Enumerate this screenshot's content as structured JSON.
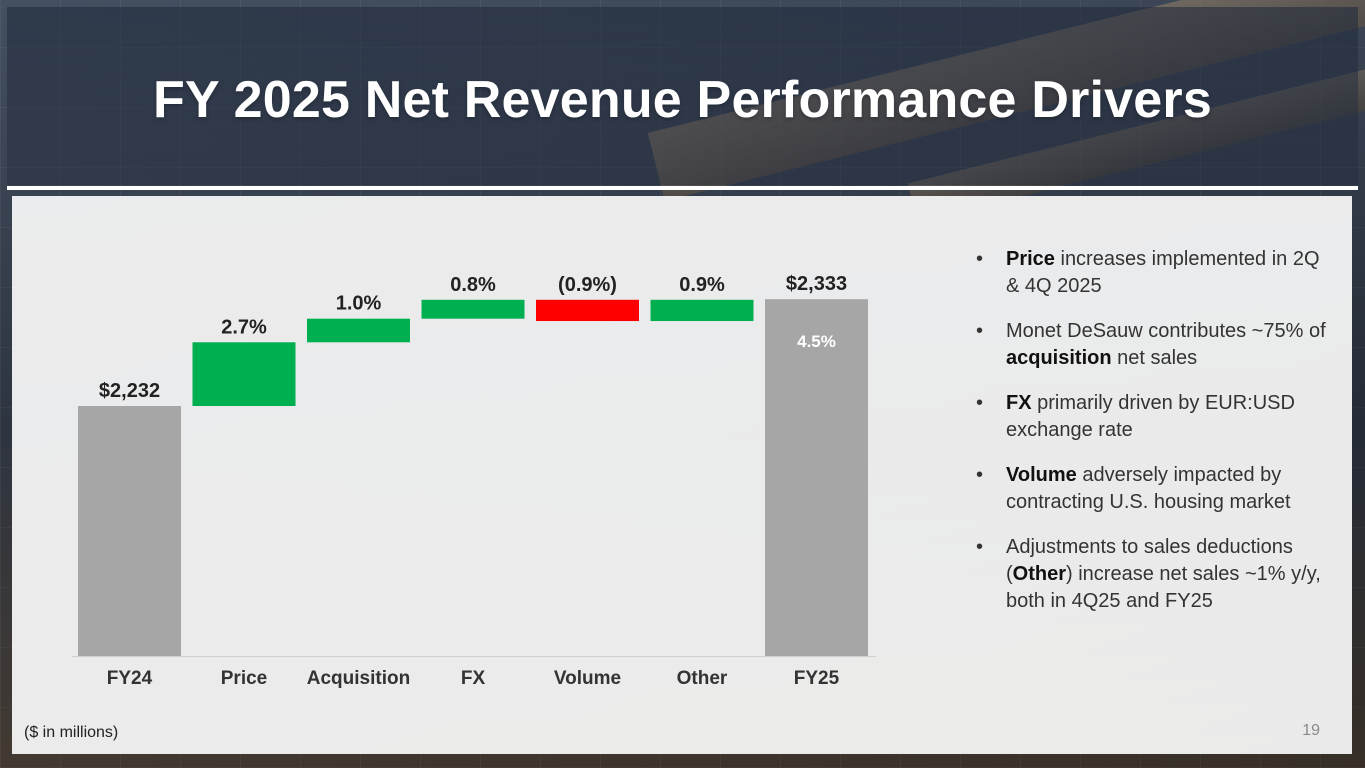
{
  "slide": {
    "title": "FY 2025 Net Revenue Performance Drivers",
    "footnote": "($ in millions)",
    "page_number": "19"
  },
  "colors": {
    "total_bar": "#a6a6a6",
    "increase": "#00b050",
    "decrease": "#ff0000"
  },
  "chart_data": {
    "type": "bar",
    "subtype": "waterfall",
    "categories": [
      "FY24",
      "Price",
      "Acquisition",
      "FX",
      "Volume",
      "Other",
      "FY25"
    ],
    "bar_kinds": [
      "total",
      "increase",
      "increase",
      "increase",
      "decrease",
      "increase",
      "total"
    ],
    "values_pct": [
      null,
      2.7,
      1.0,
      0.8,
      -0.9,
      0.9,
      null
    ],
    "start_value": 2232,
    "end_value": 2333,
    "labels": [
      "$2,232",
      "2.7%",
      "1.0%",
      "0.8%",
      "(0.9%)",
      "0.9%",
      "$2,333"
    ],
    "total_change_label": "4.5%",
    "unit": "$ in millions"
  },
  "bullets": [
    {
      "parts": [
        {
          "text": "Price",
          "bold": true
        },
        {
          "text": " increases implemented in 2Q & 4Q 2025",
          "bold": false
        }
      ]
    },
    {
      "parts": [
        {
          "text": "Monet DeSauw contributes ~75% of ",
          "bold": false
        },
        {
          "text": "acquisition",
          "bold": true
        },
        {
          "text": " net sales",
          "bold": false
        }
      ]
    },
    {
      "parts": [
        {
          "text": "FX",
          "bold": true
        },
        {
          "text": " primarily driven by EUR:USD exchange rate",
          "bold": false
        }
      ]
    },
    {
      "parts": [
        {
          "text": "Volume",
          "bold": true
        },
        {
          "text": " adversely impacted by contracting U.S. housing market",
          "bold": false
        }
      ]
    },
    {
      "parts": [
        {
          "text": "Adjustments to sales deductions (",
          "bold": false
        },
        {
          "text": "Other",
          "bold": true
        },
        {
          "text": ") increase net sales ~1% y/y, both in 4Q25 and FY25",
          "bold": false
        }
      ]
    }
  ],
  "bullet_symbol": "•"
}
